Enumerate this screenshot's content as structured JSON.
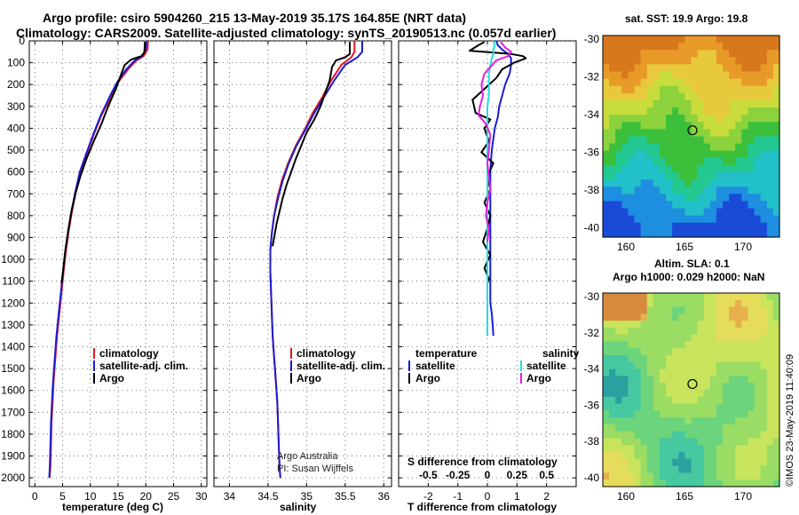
{
  "titles": {
    "line1": "Argo profile: csiro 5904260_215 13-May-2019 35.17S 164.85E (NRT data)",
    "line2": "Climatology: CARS2009. Satellite-adjusted climatology: synTS_20190513.nc (0.057d earlier)"
  },
  "colors": {
    "climatology": "#e8141e",
    "satellite": "#1c1cd2",
    "argo": "#000000",
    "s_satellite": "#22dede",
    "s_argo": "#e020e0"
  },
  "legend_main": {
    "climatology": "climatology",
    "satellite": "satellite-adj. clim.",
    "argo": "Argo"
  },
  "legend_diff": {
    "temperature_header": "temperature",
    "salinity_header": "salinity",
    "satellite": "satellite",
    "argo": "Argo"
  },
  "credits": {
    "line1": "Argo Australia",
    "line2": "PI: Susan Wijffels"
  },
  "sst_map": {
    "title": "sat. SST: 19.9 Argo: 19.8",
    "yticks": [
      "-30",
      "-32",
      "-34",
      "-36",
      "-38",
      "-40"
    ],
    "xticks": [
      "160",
      "165",
      "170"
    ]
  },
  "sla_map": {
    "title1": "Altim. SLA: 0.1",
    "title2": "Argo h1000: 0.029 h2000: NaN",
    "yticks": [
      "-30",
      "-32",
      "-34",
      "-36",
      "-38",
      "-40"
    ],
    "xticks": [
      "160",
      "165",
      "170"
    ]
  },
  "watermark": "©IMOS 23-May-2019 11:40:09",
  "chart_data": [
    {
      "type": "line",
      "panel": "temperature",
      "xlabel": "temperature (deg C)",
      "xlim": [
        -1,
        31
      ],
      "ylim": [
        2040,
        0
      ],
      "yticks": [
        0,
        100,
        200,
        300,
        400,
        500,
        600,
        700,
        800,
        900,
        1000,
        1100,
        1200,
        1300,
        1400,
        1500,
        1600,
        1700,
        1800,
        1900,
        2000
      ],
      "xticks": [
        0,
        5,
        10,
        15,
        20,
        25,
        30
      ],
      "series": [
        {
          "name": "climatology",
          "color": "#e8141e",
          "x": [
            20.4,
            20.3,
            19.6,
            18.3,
            16.8,
            15.0,
            13.6,
            12.0,
            10.6,
            9.3,
            8.2,
            7.4,
            6.7,
            6.1,
            5.6,
            5.2,
            4.8,
            4.4,
            4.0,
            3.7,
            3.4,
            3.2,
            3.0,
            2.9,
            2.8,
            2.65
          ],
          "y": [
            0,
            40,
            70,
            90,
            130,
            190,
            260,
            340,
            430,
            520,
            600,
            690,
            780,
            870,
            960,
            1050,
            1150,
            1250,
            1350,
            1450,
            1550,
            1650,
            1750,
            1850,
            1950,
            2000
          ]
        },
        {
          "name": "satellite-adj. clim.",
          "color": "#1c1cd2",
          "x": [
            20.1,
            20.0,
            19.3,
            18.0,
            16.5,
            14.8,
            13.4,
            11.9,
            10.5,
            9.2,
            8.1,
            7.3,
            6.6,
            6.0,
            5.5,
            5.1,
            4.7,
            4.3,
            3.9,
            3.6,
            3.3,
            3.1,
            2.9,
            2.8,
            2.7,
            2.6
          ],
          "y": [
            0,
            40,
            70,
            90,
            130,
            190,
            260,
            340,
            430,
            520,
            600,
            690,
            780,
            870,
            960,
            1050,
            1150,
            1250,
            1350,
            1450,
            1550,
            1650,
            1750,
            1850,
            1950,
            2000
          ]
        },
        {
          "name": "Argo",
          "color": "#000000",
          "x": [
            19.8,
            19.8,
            19.7,
            19.2,
            17.4,
            16.2,
            15.6,
            14.6,
            13.2,
            12.0,
            10.6,
            9.3,
            8.2,
            7.3,
            6.6,
            6.0,
            5.5,
            5.1,
            4.8
          ],
          "y": [
            5,
            30,
            55,
            70,
            85,
            110,
            150,
            220,
            300,
            380,
            460,
            540,
            620,
            700,
            780,
            870,
            960,
            1050,
            1110
          ]
        }
      ]
    },
    {
      "type": "line",
      "panel": "salinity",
      "xlabel": "salinity",
      "xlim": [
        33.8,
        36.1
      ],
      "ylim": [
        2040,
        0
      ],
      "xticks": [
        34,
        34.5,
        35,
        35.5,
        36
      ],
      "series": [
        {
          "name": "climatology",
          "color": "#e8141e",
          "x": [
            35.62,
            35.62,
            35.58,
            35.45,
            35.32,
            35.2,
            35.08,
            34.97,
            34.86,
            34.76,
            34.68,
            34.62,
            34.58,
            34.55,
            34.53,
            34.53,
            34.54,
            34.55,
            34.56,
            34.58,
            34.6,
            34.62,
            34.63,
            34.64,
            34.65,
            34.66
          ],
          "y": [
            0,
            50,
            75,
            110,
            180,
            260,
            330,
            410,
            480,
            560,
            640,
            720,
            800,
            880,
            960,
            1060,
            1150,
            1250,
            1350,
            1450,
            1550,
            1650,
            1750,
            1850,
            1950,
            2000
          ]
        },
        {
          "name": "satellite-adj. clim.",
          "color": "#1c1cd2",
          "x": [
            35.72,
            35.72,
            35.66,
            35.5,
            35.36,
            35.22,
            35.1,
            34.98,
            34.87,
            34.77,
            34.69,
            34.63,
            34.58,
            34.55,
            34.53,
            34.53,
            34.54,
            34.55,
            34.56,
            34.58,
            34.6,
            34.62,
            34.63,
            34.64,
            34.65,
            34.66
          ],
          "y": [
            0,
            50,
            75,
            110,
            180,
            260,
            330,
            410,
            480,
            560,
            640,
            720,
            800,
            880,
            960,
            1060,
            1150,
            1250,
            1350,
            1450,
            1550,
            1650,
            1750,
            1850,
            1950,
            2000
          ]
        },
        {
          "name": "Argo",
          "color": "#000000",
          "x": [
            35.56,
            35.56,
            35.5,
            35.38,
            35.33,
            35.3,
            35.24,
            35.18,
            35.1,
            35.0,
            34.93,
            34.86,
            34.8,
            34.74,
            34.69,
            34.65,
            34.61,
            34.58,
            34.56
          ],
          "y": [
            5,
            60,
            75,
            90,
            120,
            180,
            240,
            300,
            360,
            420,
            480,
            540,
            600,
            660,
            720,
            780,
            840,
            900,
            940
          ]
        }
      ]
    },
    {
      "type": "line",
      "panel": "difference",
      "xlabel": "T difference from climatology",
      "xlabel_top": "S difference from climatology",
      "xlim": [
        -3,
        3
      ],
      "xticks": [
        -2,
        -1,
        0,
        1,
        2
      ],
      "xticks_top": [
        "-0.5",
        "-0.25",
        "0",
        "0.25",
        "0.5"
      ],
      "ylim": [
        2040,
        0
      ],
      "series": [
        {
          "name": "temperature satellite",
          "color": "#1c1cd2",
          "x": [
            0.3,
            0.35,
            0.5,
            0.7,
            0.8,
            0.8,
            0.75,
            0.6,
            0.5,
            0.4,
            0.35,
            0.25,
            0.2,
            0.15,
            0.12,
            0.1,
            0.1,
            0.1,
            0.1,
            0.1,
            0.1,
            0.1,
            0.1,
            0.1,
            0.1,
            0.1,
            0.1,
            0.1,
            0.15,
            0.18,
            0.2
          ],
          "y": [
            0,
            20,
            40,
            60,
            80,
            110,
            150,
            200,
            250,
            300,
            350,
            400,
            450,
            500,
            550,
            600,
            650,
            700,
            750,
            800,
            850,
            900,
            950,
            1000,
            1050,
            1100,
            1150,
            1200,
            1250,
            1300,
            1350
          ]
        },
        {
          "name": "temperature Argo",
          "color": "#000000",
          "x": [
            -0.1,
            -0.3,
            -0.6,
            0.8,
            1.2,
            1.3,
            0.9,
            0.5,
            0.3,
            -0.1,
            -0.5,
            -0.4,
            0.1,
            -0.1,
            0.05,
            -0.2,
            0.2,
            0.0,
            0.1,
            -0.1,
            0.1,
            0.0,
            -0.15,
            0.1,
            -0.1,
            0.05,
            0.0
          ],
          "y": [
            5,
            20,
            45,
            60,
            70,
            80,
            100,
            130,
            170,
            220,
            270,
            330,
            360,
            400,
            460,
            510,
            560,
            620,
            680,
            740,
            800,
            860,
            920,
            980,
            1040,
            1090,
            1110
          ]
        },
        {
          "name": "salinity satellite",
          "color": "#22dede",
          "x": [
            0.2,
            0.25,
            0.2,
            0.2,
            0.15,
            0.1,
            0.05,
            0.05,
            0.05,
            0.0,
            0.0,
            0.0,
            0.0,
            0.0,
            0.0,
            0.0,
            0.0,
            0.0,
            0.0,
            0.0,
            0.0,
            0.0,
            0.0,
            0.0,
            0.0,
            0.0,
            0.0,
            0.0,
            0.0,
            0.0,
            0.0
          ],
          "y": [
            0,
            20,
            40,
            60,
            80,
            110,
            150,
            200,
            250,
            300,
            350,
            400,
            450,
            500,
            550,
            600,
            650,
            700,
            750,
            800,
            850,
            900,
            950,
            1000,
            1050,
            1100,
            1150,
            1200,
            1250,
            1300,
            1350
          ]
        },
        {
          "name": "salinity Argo",
          "color": "#e020e0",
          "x": [
            0.45,
            0.6,
            0.8,
            0.7,
            0.3,
            -0.1,
            -0.2,
            -0.15,
            -0.25,
            -0.3,
            -0.05,
            0.1,
            0.05,
            0.0,
            0.05,
            0.1,
            0.0,
            -0.05,
            0.05,
            0.0
          ],
          "y": [
            5,
            30,
            50,
            70,
            90,
            150,
            200,
            250,
            300,
            340,
            380,
            430,
            500,
            560,
            620,
            680,
            740,
            800,
            860,
            920
          ]
        }
      ]
    }
  ]
}
